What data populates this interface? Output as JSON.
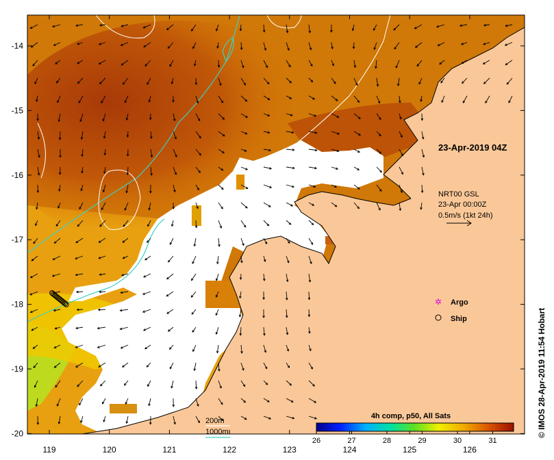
{
  "map": {
    "lon_ticks": [
      "119",
      "120",
      "121",
      "122",
      "123",
      "124",
      "125",
      "126"
    ],
    "lat_ticks": [
      "-14",
      "-15",
      "-16",
      "-17",
      "-18",
      "-19",
      "-20"
    ],
    "timestamp": "23-Apr-2019 04Z",
    "current_info": {
      "line1": "NRT00 GSL",
      "line2": "23-Apr 00:00Z",
      "line3": "0.5m/s (1kt 24h)"
    },
    "legend": {
      "argo_label": "Argo",
      "ship_label": "Ship",
      "argo_color": "#e000e0"
    },
    "contours": {
      "label_200": "200m",
      "label_1000": "1000m",
      "color_200": "#ffffff",
      "color_1000": "#40d0c0"
    },
    "colorbar": {
      "title": "4h comp, p50, All Sats",
      "ticks": [
        "26",
        "27",
        "28",
        "29",
        "30",
        "31"
      ]
    },
    "land_color": "#fac898",
    "credit": "© IMOS 28-Apr-2019 11:54 Hobart"
  }
}
